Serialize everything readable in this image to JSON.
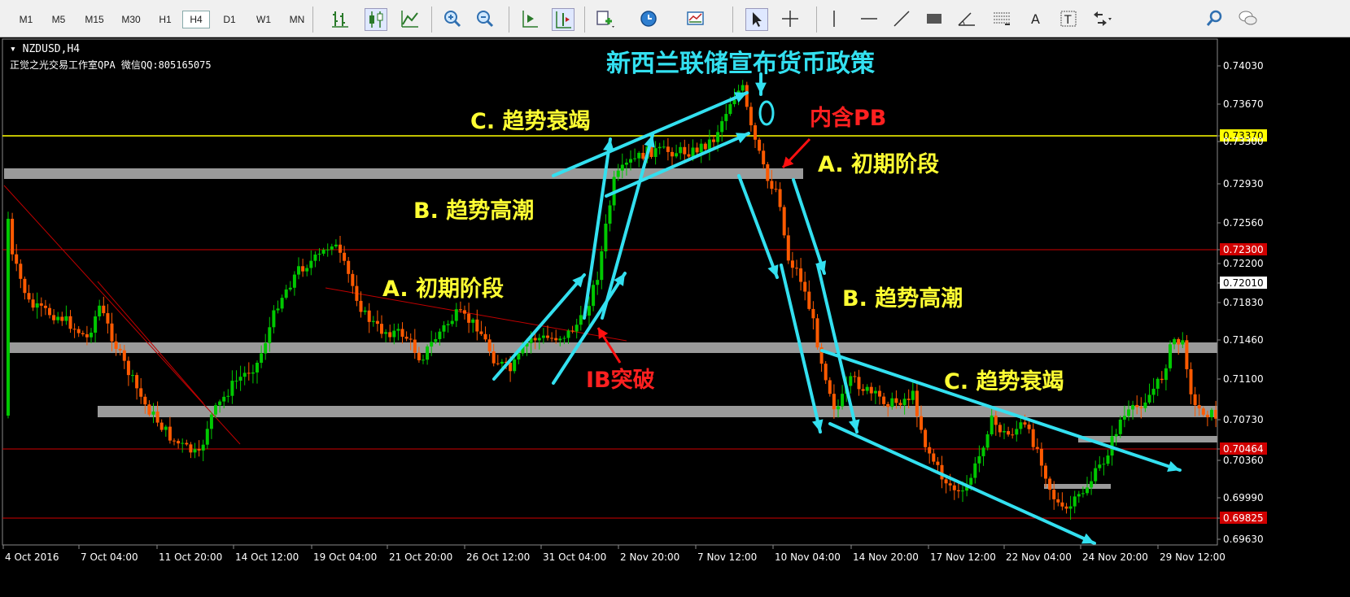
{
  "toolbar": {
    "timeframes": [
      "M1",
      "M5",
      "M15",
      "M30",
      "H1",
      "H4",
      "D1",
      "W1",
      "MN"
    ],
    "active_timeframe": "H4",
    "icons": [
      "bar-chart-icon",
      "candlestick-icon",
      "line-chart-icon",
      "zoom-in-icon",
      "zoom-out-icon",
      "autoscroll-icon",
      "chart-shift-icon",
      "new-order-icon",
      "clock-icon",
      "templates-icon",
      "cursor-icon",
      "crosshair-icon",
      "vertical-line-icon",
      "horizontal-line-icon",
      "trendline-icon",
      "rectangle-icon",
      "angle-icon",
      "fibonacci-icon",
      "text-icon",
      "text-label-icon",
      "arrows-icon",
      "search-icon",
      "chat-icon"
    ]
  },
  "chart": {
    "symbol": "NZDUSD,H4",
    "watermark": "正觉之光交易工作室QPA 微信QQ:805165075",
    "price_labels": [
      "0.74030",
      "0.73670",
      "0.73370",
      "0.73300",
      "0.72930",
      "0.72560",
      "0.72300",
      "0.72200",
      "0.72010",
      "0.71830",
      "0.71460",
      "0.71100",
      "0.70730",
      "0.70464",
      "0.70360",
      "0.69990",
      "0.69825",
      "0.69630"
    ],
    "highlight_prices": {
      "yellow": "0.73370",
      "red1": "0.72300",
      "white": "0.72010",
      "red2": "0.70464",
      "red3": "0.69825"
    },
    "time_labels": [
      "4 Oct 2016",
      "7 Oct 04:00",
      "11 Oct 20:00",
      "14 Oct 12:00",
      "19 Oct 04:00",
      "21 Oct 20:00",
      "26 Oct 12:00",
      "31 Oct 04:00",
      "2 Nov 20:00",
      "7 Nov 12:00",
      "10 Nov 04:00",
      "14 Nov 20:00",
      "17 Nov 12:00",
      "22 Nov 04:00",
      "24 Nov 20:00",
      "29 Nov 12:00"
    ],
    "colors": {
      "background": "#000000",
      "bull": "#00c800",
      "bear": "#ff5a00",
      "cyan": "#33e0f0",
      "yellow_text": "#ffff33",
      "red_text": "#ff2020",
      "grey_zone": "#9a9a9a"
    }
  },
  "annotations": {
    "title": "新西兰联储宣布货币政策",
    "left_a": "A. 初期阶段",
    "left_b": "B. 趋势高潮",
    "left_c": "C. 趋势衰竭",
    "ib": "IB突破",
    "pb": "内含PB",
    "right_a": "A. 初期阶段",
    "right_b": "B. 趋势高潮",
    "right_c": "C. 趋势衰竭"
  }
}
